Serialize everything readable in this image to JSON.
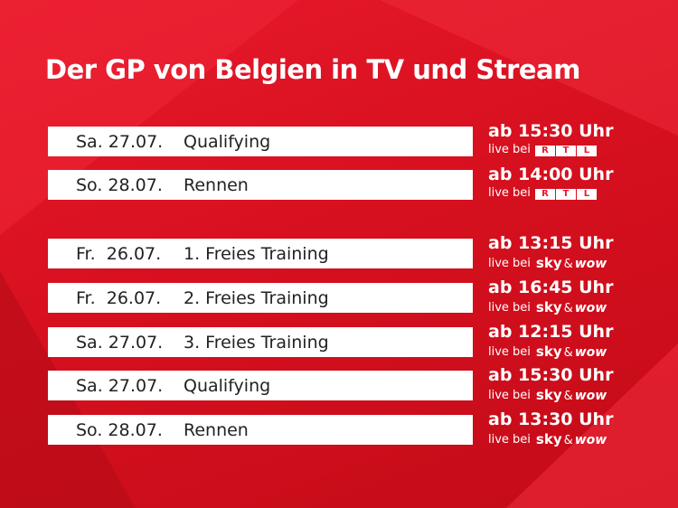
{
  "header": {
    "title": "Der GP von Belgien in TV und Stream"
  },
  "live_prefix": "live bei",
  "groups": [
    {
      "rows": [
        {
          "date": "Sa. 27.07.",
          "session": "Qualifying",
          "time": "ab 15:30 Uhr",
          "logo": [
            "R",
            "T",
            "L"
          ]
        },
        {
          "date": "So. 28.07.",
          "session": "Rennen",
          "time": "ab 14:00 Uhr",
          "logo": [
            "R",
            "T",
            "L"
          ]
        }
      ]
    },
    {
      "rows": [
        {
          "date": "Fr.  26.07.",
          "session": "1. Freies Training",
          "time": "ab 13:15 Uhr",
          "logo": [
            "sky",
            "&",
            "wow"
          ]
        },
        {
          "date": "Fr.  26.07.",
          "session": "2. Freies Training",
          "time": "ab 16:45 Uhr",
          "logo": [
            "sky",
            "&",
            "wow"
          ]
        },
        {
          "date": "Sa. 27.07.",
          "session": "3. Freies Training",
          "time": "ab 12:15 Uhr",
          "logo": [
            "sky",
            "&",
            "wow"
          ]
        },
        {
          "date": "Sa. 27.07.",
          "session": "Qualifying",
          "time": "ab 15:30 Uhr",
          "logo": [
            "sky",
            "&",
            "wow"
          ]
        },
        {
          "date": "So. 28.07.",
          "session": "Rennen",
          "time": "ab 13:30 Uhr",
          "logo": [
            "sky",
            "&",
            "wow"
          ]
        }
      ]
    }
  ]
}
